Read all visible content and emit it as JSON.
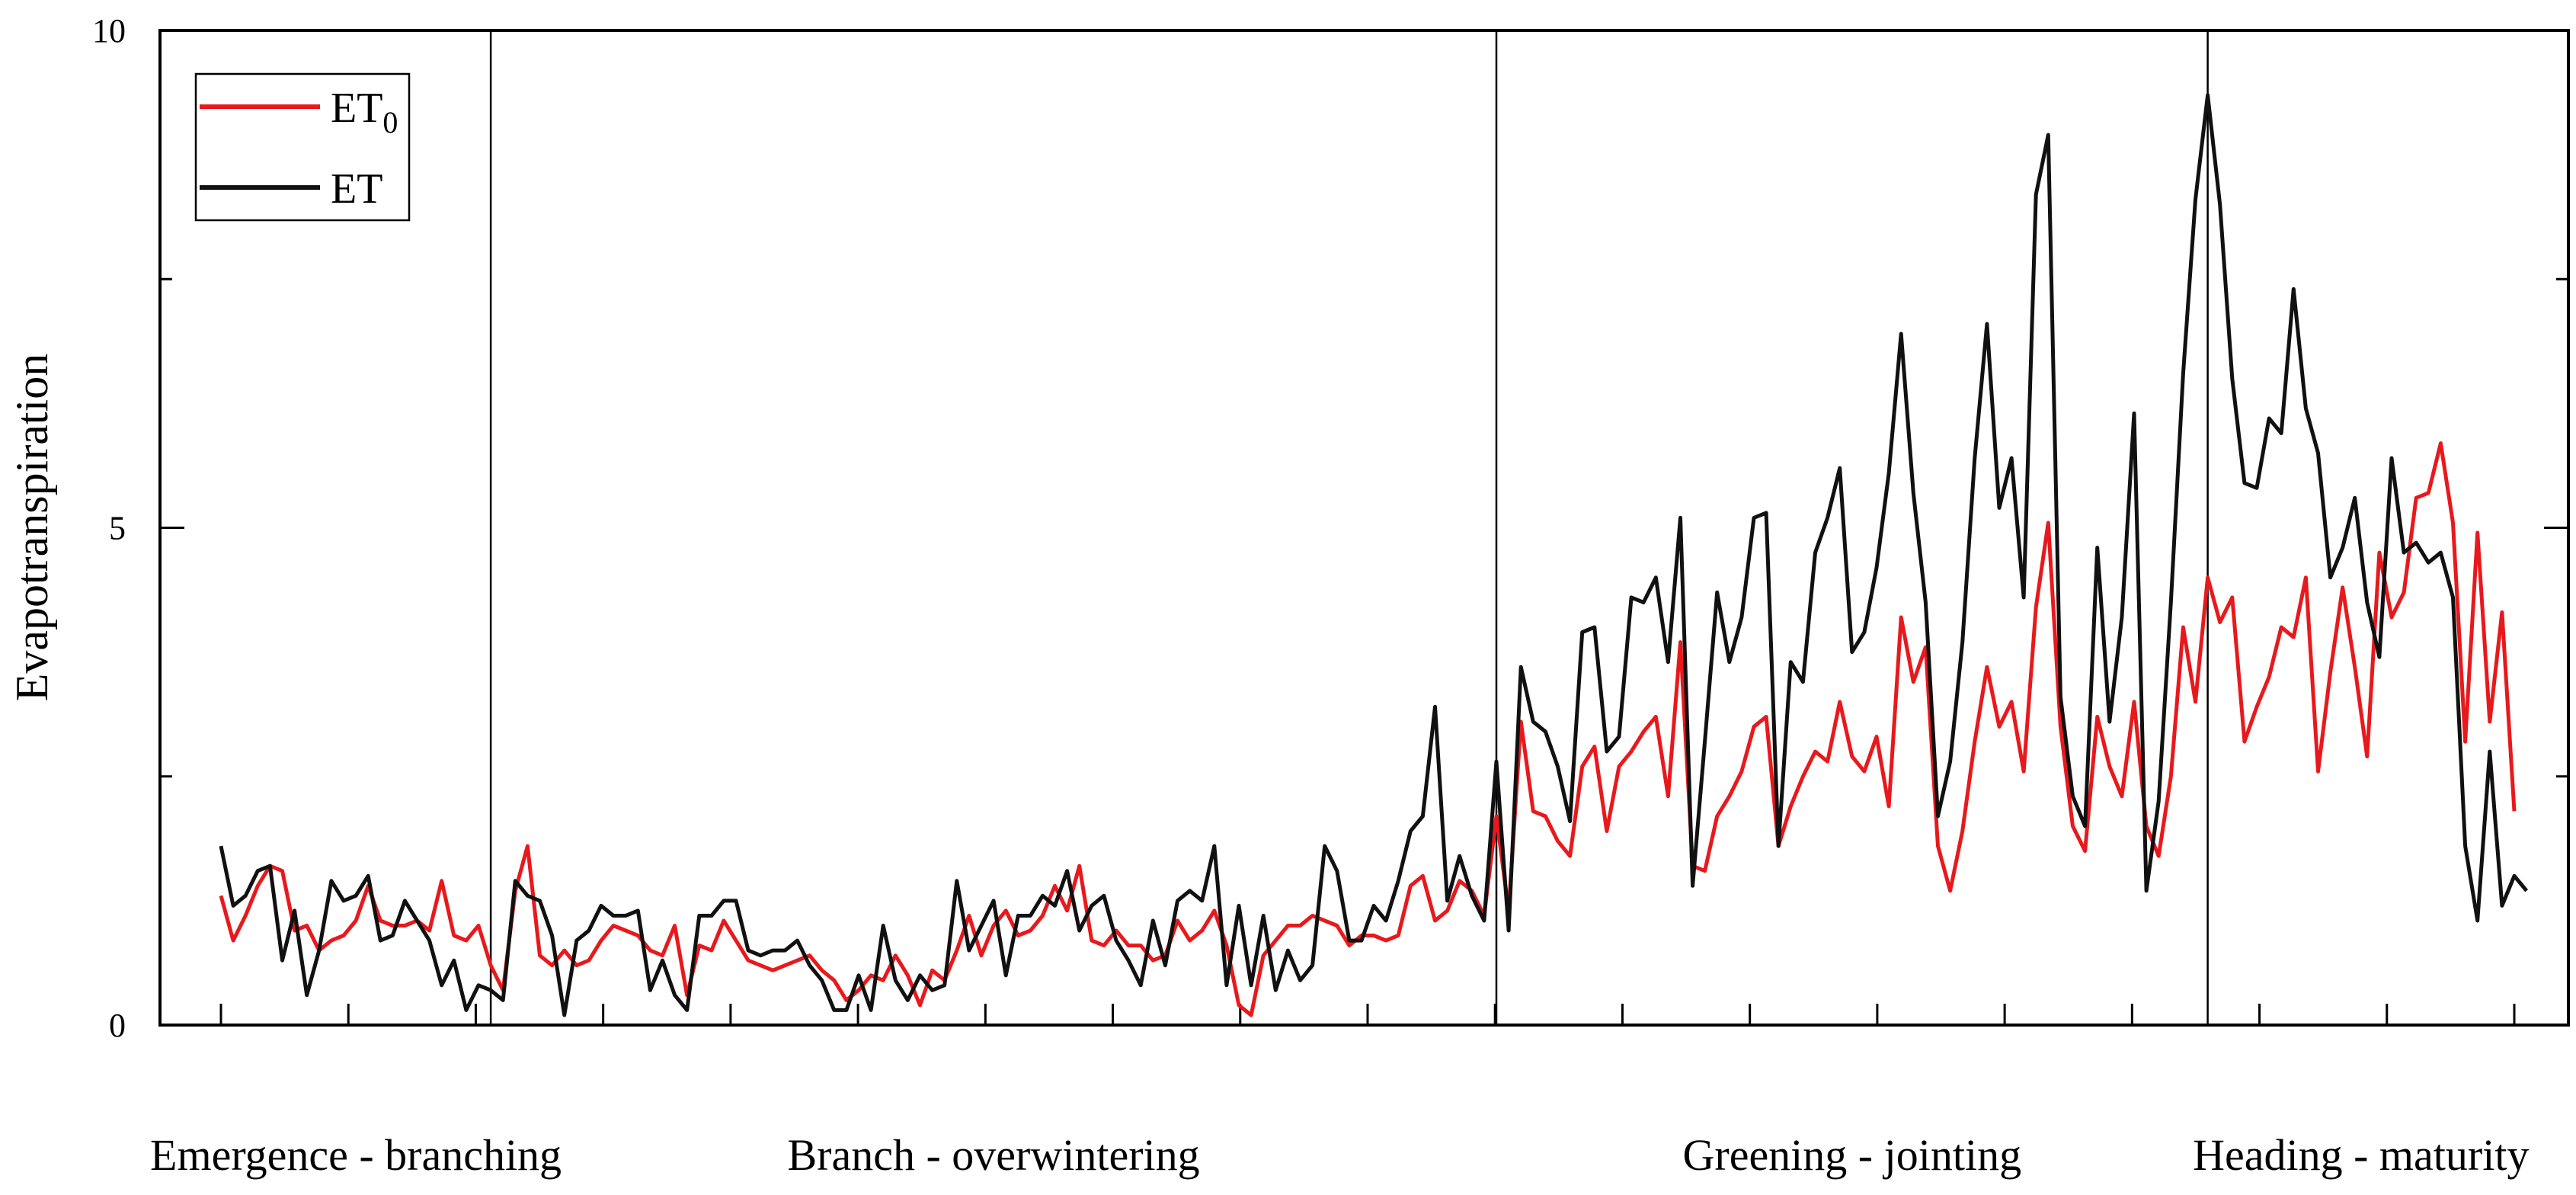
{
  "chart_data": {
    "type": "line",
    "ylabel": "Evapotranspiration",
    "xlabel": "",
    "ylim": [
      0,
      10
    ],
    "yticks": [
      "0",
      "5",
      "10"
    ],
    "grid": false,
    "legend_position": "top-left",
    "x_minor_tick_count": 19,
    "stage_boundaries": [
      22,
      104,
      162
    ],
    "stages": [
      "Emergence - branching",
      "Branch - overwintering",
      "Greening - jointing",
      "Heading - maturity"
    ],
    "series": [
      {
        "name": "ET",
        "name_sub": "0",
        "color": "#e8191c",
        "values": [
          1.3,
          0.85,
          1.1,
          1.4,
          1.6,
          1.55,
          0.95,
          1.0,
          0.75,
          0.85,
          0.9,
          1.05,
          1.4,
          1.05,
          1.0,
          1.0,
          1.05,
          0.95,
          1.45,
          0.9,
          0.85,
          1.0,
          0.6,
          0.35,
          1.35,
          1.8,
          0.7,
          0.6,
          0.75,
          0.6,
          0.65,
          0.85,
          1.0,
          0.95,
          0.9,
          0.75,
          0.7,
          1.0,
          0.3,
          0.8,
          0.75,
          1.05,
          0.85,
          0.65,
          0.6,
          0.55,
          0.6,
          0.65,
          0.7,
          0.55,
          0.45,
          0.25,
          0.35,
          0.5,
          0.45,
          0.7,
          0.5,
          0.2,
          0.55,
          0.45,
          0.75,
          1.1,
          0.7,
          1.0,
          1.15,
          0.9,
          0.95,
          1.1,
          1.4,
          1.15,
          1.6,
          0.85,
          0.8,
          0.95,
          0.8,
          0.8,
          0.65,
          0.7,
          1.05,
          0.85,
          0.95,
          1.15,
          0.8,
          0.2,
          0.1,
          0.7,
          0.85,
          1.0,
          1.0,
          1.1,
          1.05,
          1.0,
          0.8,
          0.9,
          0.9,
          0.85,
          0.9,
          1.4,
          1.5,
          1.05,
          1.15,
          1.45,
          1.35,
          1.1,
          2.1,
          1.15,
          3.05,
          2.15,
          2.1,
          1.85,
          1.7,
          2.6,
          2.8,
          1.95,
          2.6,
          2.75,
          2.95,
          3.1,
          2.3,
          3.85,
          1.6,
          1.55,
          2.1,
          2.3,
          2.55,
          3.0,
          3.1,
          1.8,
          2.2,
          2.5,
          2.75,
          2.65,
          3.25,
          2.7,
          2.55,
          2.9,
          2.2,
          4.1,
          3.45,
          3.8,
          1.8,
          1.35,
          1.95,
          2.85,
          3.6,
          3.0,
          3.25,
          2.55,
          4.2,
          5.05,
          3.0,
          2.0,
          1.75,
          3.1,
          2.6,
          2.3,
          3.25,
          2.0,
          1.7,
          2.5,
          4.0,
          3.25,
          4.5,
          4.05,
          4.3,
          2.85,
          3.2,
          3.5,
          4.0,
          3.9,
          4.5,
          2.55,
          3.55,
          4.4,
          3.6,
          2.7,
          4.75,
          4.1,
          4.35,
          5.3,
          5.35,
          5.85,
          5.05,
          2.85,
          4.95,
          3.05,
          4.15,
          2.15
        ]
      },
      {
        "name": "ET",
        "name_sub": "",
        "color": "#111111",
        "values": [
          1.8,
          1.2,
          1.3,
          1.55,
          1.6,
          0.65,
          1.15,
          0.3,
          0.75,
          1.45,
          1.25,
          1.3,
          1.5,
          0.85,
          0.9,
          1.25,
          1.05,
          0.85,
          0.4,
          0.65,
          0.15,
          0.4,
          0.35,
          0.25,
          1.45,
          1.3,
          1.25,
          0.9,
          0.1,
          0.85,
          0.95,
          1.2,
          1.1,
          1.1,
          1.15,
          0.35,
          0.65,
          0.3,
          0.15,
          1.1,
          1.1,
          1.25,
          1.25,
          0.75,
          0.7,
          0.75,
          0.75,
          0.85,
          0.6,
          0.45,
          0.15,
          0.15,
          0.5,
          0.15,
          1.0,
          0.45,
          0.25,
          0.5,
          0.35,
          0.4,
          1.45,
          0.75,
          1.0,
          1.25,
          0.5,
          1.1,
          1.1,
          1.3,
          1.2,
          1.55,
          0.95,
          1.2,
          1.3,
          0.85,
          0.65,
          0.4,
          1.05,
          0.6,
          1.25,
          1.35,
          1.25,
          1.8,
          0.4,
          1.2,
          0.4,
          1.1,
          0.35,
          0.75,
          0.45,
          0.6,
          1.8,
          1.55,
          0.85,
          0.85,
          1.2,
          1.05,
          1.45,
          1.95,
          2.1,
          3.2,
          1.25,
          1.7,
          1.3,
          1.05,
          2.65,
          0.95,
          3.6,
          3.05,
          2.95,
          2.6,
          2.05,
          3.95,
          4.0,
          2.75,
          2.9,
          4.3,
          4.25,
          4.5,
          3.65,
          5.1,
          1.4,
          2.85,
          4.35,
          3.65,
          4.1,
          5.1,
          5.15,
          1.8,
          3.65,
          3.45,
          4.75,
          5.1,
          5.6,
          3.75,
          3.95,
          4.6,
          5.55,
          6.95,
          5.35,
          4.25,
          2.1,
          2.65,
          3.85,
          5.7,
          7.05,
          5.2,
          5.7,
          4.3,
          8.35,
          8.95,
          3.3,
          2.3,
          2.0,
          4.8,
          3.05,
          4.1,
          6.15,
          1.35,
          2.25,
          4.25,
          6.55,
          8.3,
          9.35,
          8.25,
          6.5,
          5.45,
          5.4,
          6.1,
          5.95,
          7.4,
          6.2,
          5.75,
          4.5,
          4.8,
          5.3,
          4.25,
          3.7,
          5.7,
          4.75,
          4.85,
          4.65,
          4.75,
          4.3,
          1.8,
          1.05,
          2.75,
          1.2,
          1.5,
          1.35
        ]
      }
    ]
  }
}
